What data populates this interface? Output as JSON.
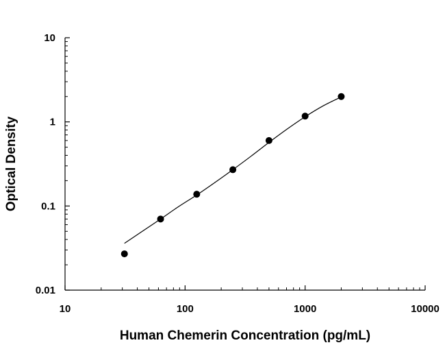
{
  "chart_data": {
    "type": "scatter",
    "title": "",
    "xlabel": "Human Chemerin Concentration (pg/mL)",
    "ylabel": "Optical Density",
    "xscale": "log",
    "yscale": "log",
    "xlim": [
      10,
      10000
    ],
    "ylim": [
      0.01,
      10
    ],
    "x_ticks": [
      "10",
      "100",
      "1000",
      "10000"
    ],
    "y_ticks": [
      "0.01",
      "0.1",
      "1",
      "10"
    ],
    "grid": false,
    "legend": "none",
    "marker_color": "#000000",
    "series": [
      {
        "points": [
          {
            "x": 31.25,
            "y": 0.027
          },
          {
            "x": 62.5,
            "y": 0.07
          },
          {
            "x": 125,
            "y": 0.138
          },
          {
            "x": 250,
            "y": 0.27
          },
          {
            "x": 500,
            "y": 0.6
          },
          {
            "x": 1000,
            "y": 1.17
          },
          {
            "x": 2000,
            "y": 2.0
          }
        ]
      }
    ],
    "fit_curve": [
      {
        "x": 31.25,
        "y": 0.036
      },
      {
        "x": 44,
        "y": 0.05
      },
      {
        "x": 62.5,
        "y": 0.07
      },
      {
        "x": 88,
        "y": 0.098
      },
      {
        "x": 125,
        "y": 0.135
      },
      {
        "x": 177,
        "y": 0.19
      },
      {
        "x": 250,
        "y": 0.27
      },
      {
        "x": 354,
        "y": 0.39
      },
      {
        "x": 500,
        "y": 0.57
      },
      {
        "x": 707,
        "y": 0.82
      },
      {
        "x": 1000,
        "y": 1.15
      },
      {
        "x": 1414,
        "y": 1.55
      },
      {
        "x": 2000,
        "y": 1.98
      }
    ]
  }
}
